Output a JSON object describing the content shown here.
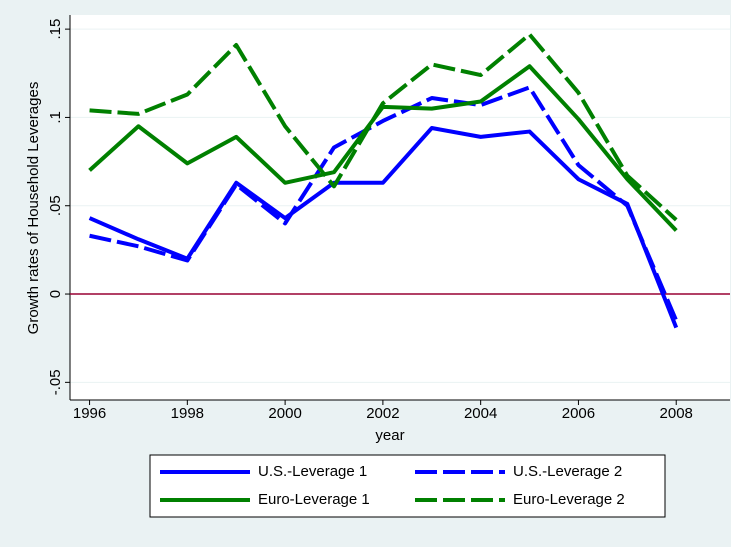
{
  "chart_data": {
    "type": "line",
    "x_label": "year",
    "y_label": "Growth rates of Household Leverages",
    "x": [
      1996,
      1997,
      1998,
      1999,
      2000,
      2001,
      2002,
      2003,
      2004,
      2005,
      2006,
      2007,
      2008
    ],
    "series": [
      {
        "name": "U.S.-Leverage 1",
        "color": "#0000ff",
        "dash": false,
        "values": [
          0.043,
          0.031,
          0.02,
          0.063,
          0.043,
          0.063,
          0.063,
          0.094,
          0.089,
          0.092,
          0.065,
          0.051,
          -0.019
        ]
      },
      {
        "name": "U.S.-Leverage 2",
        "color": "#0000ff",
        "dash": true,
        "values": [
          0.033,
          0.027,
          0.019,
          0.062,
          0.04,
          0.083,
          0.098,
          0.111,
          0.107,
          0.117,
          0.073,
          0.05,
          -0.015
        ]
      },
      {
        "name": "Euro-Leverage 1",
        "color": "#008000",
        "dash": false,
        "values": [
          0.07,
          0.095,
          0.074,
          0.089,
          0.063,
          0.069,
          0.106,
          0.105,
          0.109,
          0.129,
          0.099,
          0.065,
          0.036
        ]
      },
      {
        "name": "Euro-Leverage 2",
        "color": "#008000",
        "dash": true,
        "values": [
          0.104,
          0.102,
          0.113,
          0.141,
          0.095,
          0.061,
          0.108,
          0.13,
          0.124,
          0.147,
          0.114,
          0.067,
          0.042
        ]
      }
    ],
    "xlim": [
      1995.6,
      2009.1
    ],
    "xticks": [
      1996,
      1998,
      2000,
      2002,
      2004,
      2006,
      2008
    ],
    "ylim": [
      -0.06,
      0.158
    ],
    "yticks": [
      {
        "value": -0.05,
        "label": "-.05"
      },
      0,
      {
        "value": 0.05,
        "label": ".05"
      },
      {
        "value": 0.1,
        "label": ".1"
      },
      {
        "value": 0.15,
        "label": ".15"
      }
    ],
    "grid": true,
    "yline": 0,
    "yline_color": "#990033"
  }
}
